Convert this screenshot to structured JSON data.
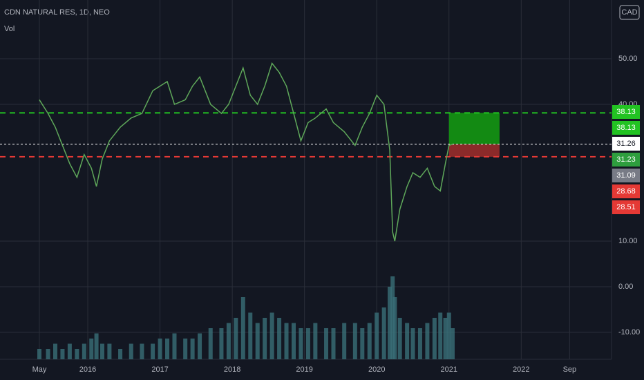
{
  "chart_data": {
    "type": "line",
    "title": "CDN NATURAL RES, 1D, NEO",
    "subtitle": "Vol",
    "currency": "CAD",
    "x": [
      2015.33,
      2015.45,
      2015.55,
      2015.65,
      2015.75,
      2015.85,
      2015.95,
      2016.05,
      2016.12,
      2016.2,
      2016.3,
      2016.45,
      2016.6,
      2016.75,
      2016.9,
      2017.0,
      2017.1,
      2017.2,
      2017.35,
      2017.45,
      2017.55,
      2017.7,
      2017.85,
      2017.95,
      2018.05,
      2018.15,
      2018.25,
      2018.35,
      2018.45,
      2018.55,
      2018.65,
      2018.75,
      2018.85,
      2018.95,
      2019.05,
      2019.15,
      2019.3,
      2019.4,
      2019.55,
      2019.7,
      2019.8,
      2019.9,
      2020.0,
      2020.1,
      2020.18,
      2020.22,
      2020.25,
      2020.32,
      2020.42,
      2020.5,
      2020.6,
      2020.7,
      2020.8,
      2020.88,
      2020.95,
      2021.0,
      2021.05
    ],
    "series": [
      {
        "color": "#5fa85a",
        "values": [
          41,
          38,
          35,
          31,
          27,
          24,
          29,
          26,
          22,
          28,
          32,
          35,
          37,
          38,
          43,
          44,
          45,
          40,
          41,
          44,
          46,
          40,
          38,
          40,
          44,
          48,
          42,
          40,
          44,
          49,
          47,
          44,
          38,
          32,
          36,
          37,
          39,
          36,
          34,
          31,
          35,
          38,
          42,
          40,
          30,
          12,
          10,
          17,
          22,
          25,
          24,
          26,
          22,
          21,
          27,
          31,
          31.26
        ]
      },
      {
        "color": "#3a6f78",
        "values": [
          2,
          2,
          3,
          2,
          3,
          2,
          3,
          4,
          5,
          3,
          3,
          2,
          3,
          3,
          3,
          4,
          4,
          5,
          4,
          4,
          5,
          6,
          6,
          7,
          8,
          12,
          9,
          7,
          8,
          9,
          8,
          7,
          7,
          6,
          6,
          7,
          6,
          6,
          7,
          7,
          6,
          7,
          9,
          10,
          14,
          16,
          12,
          8,
          7,
          6,
          6,
          7,
          8,
          9,
          8,
          9,
          6
        ]
      }
    ],
    "xlim": [
      2014.785,
      2023.25
    ],
    "xticks": [
      {
        "value": 2015.33,
        "label": "May"
      },
      2016,
      2017,
      2018,
      2019,
      2020,
      2021,
      2022,
      {
        "value": 2022.67,
        "label": "Sep"
      }
    ],
    "ylim": [
      -15.9,
      62.88
    ],
    "yticks": [
      {
        "value": 50,
        "label": "50.00"
      },
      {
        "value": 40,
        "label": "40.00"
      },
      {
        "value": 10,
        "label": "10.00"
      },
      {
        "value": 0,
        "label": "0.00"
      },
      {
        "value": -10,
        "label": "-10.00"
      }
    ],
    "grid": true,
    "levels": [
      {
        "value": 38.13,
        "color": "#22c322"
      },
      {
        "value": 31.26,
        "color": "#ffffff"
      },
      {
        "value": 28.51,
        "color": "#e53935"
      }
    ],
    "position": {
      "start": 2021.0,
      "end": 2021.7,
      "entry": 31.26,
      "target": 38.13,
      "stop": 28.51
    },
    "price_labels": [
      {
        "value": 38.13,
        "color": "#22c322"
      },
      {
        "value": 38.13,
        "color": "#22c322"
      },
      {
        "value": 31.26,
        "color": "#ffffff"
      },
      {
        "value": 31.23,
        "color": "#2e9e3e"
      },
      {
        "value": 31.09,
        "color": "#787b86"
      },
      {
        "value": 28.68,
        "color": "#e53935"
      },
      {
        "value": 28.51,
        "color": "#e53935"
      }
    ]
  }
}
